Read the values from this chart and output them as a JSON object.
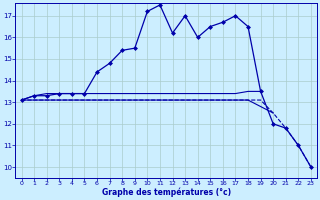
{
  "background_color": "#cceeff",
  "grid_color": "#aacccc",
  "line_color": "#0000aa",
  "xlabel": "Graphe des températures (°c)",
  "xlim": [
    -0.5,
    23.5
  ],
  "ylim": [
    9.5,
    17.6
  ],
  "yticks": [
    10,
    11,
    12,
    13,
    14,
    15,
    16,
    17
  ],
  "xticks": [
    0,
    1,
    2,
    3,
    4,
    5,
    6,
    7,
    8,
    9,
    10,
    11,
    12,
    13,
    14,
    15,
    16,
    17,
    18,
    19,
    20,
    21,
    22,
    23
  ],
  "series": {
    "temp": [
      13.1,
      13.3,
      13.3,
      13.4,
      13.4,
      13.4,
      14.4,
      14.8,
      15.4,
      15.5,
      17.2,
      17.5,
      16.2,
      17.0,
      16.0,
      16.5,
      16.7,
      17.0,
      16.5,
      13.5,
      12.0,
      11.8,
      11.0,
      10.0
    ],
    "max_flat": [
      13.1,
      13.3,
      13.4,
      13.4,
      13.4,
      13.4,
      13.4,
      13.4,
      13.4,
      13.4,
      13.4,
      13.4,
      13.4,
      13.4,
      13.4,
      13.4,
      13.4,
      13.4,
      13.5,
      13.5,
      null,
      null,
      null,
      null
    ],
    "avg_line": [
      13.1,
      13.1,
      13.1,
      13.1,
      13.1,
      13.1,
      13.1,
      13.1,
      13.1,
      13.1,
      13.1,
      13.1,
      13.1,
      13.1,
      13.1,
      13.1,
      13.1,
      13.1,
      13.1,
      12.8,
      12.5,
      null,
      null,
      null
    ],
    "min_line": [
      13.1,
      13.1,
      13.1,
      13.1,
      13.1,
      13.1,
      13.1,
      13.1,
      13.1,
      13.1,
      13.1,
      13.1,
      13.1,
      13.1,
      13.1,
      13.1,
      13.1,
      13.1,
      13.1,
      13.1,
      12.5,
      11.8,
      11.0,
      10.0
    ]
  }
}
